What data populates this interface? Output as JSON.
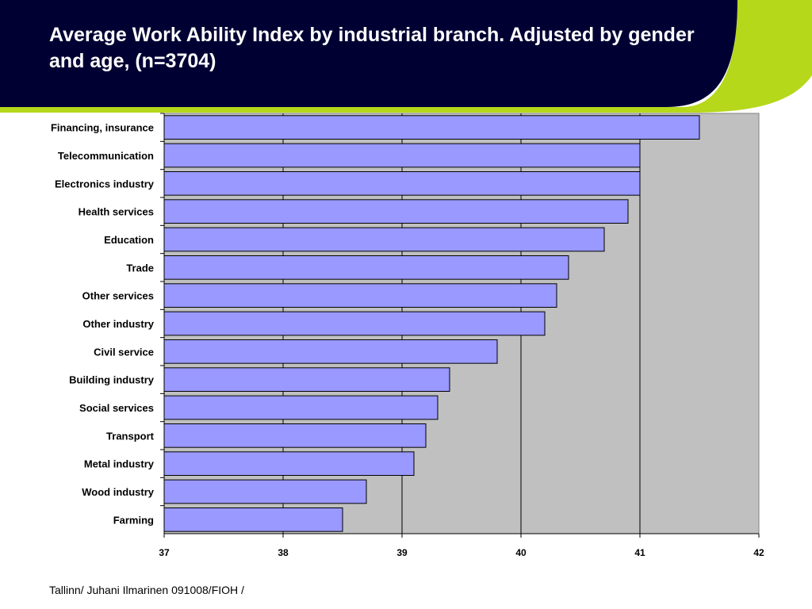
{
  "slide": {
    "title": "Average Work Ability Index by industrial branch. Adjusted by gender and age, (n=3704)",
    "footer": "Tallinn/ Juhani Ilmarinen 091008/FIOH /"
  },
  "colors": {
    "header": "#000033",
    "accent": "#b5d81b",
    "bar_fill": "#9999ff",
    "plot_bg": "#c0c0c0"
  },
  "chart_data": {
    "type": "bar",
    "orientation": "horizontal",
    "categories": [
      "Financing, insurance",
      "Telecommunication",
      "Electronics industry",
      "Health services",
      "Education",
      "Trade",
      "Other  services",
      "Other industry",
      "Civil service",
      "Building industry",
      "Social services",
      "Transport",
      "Metal industry",
      "Wood industry",
      "Farming"
    ],
    "values": [
      41.5,
      41.0,
      41.0,
      40.9,
      40.7,
      40.4,
      40.3,
      40.2,
      39.8,
      39.4,
      39.3,
      39.2,
      39.1,
      38.7,
      38.5
    ],
    "xlim": [
      37,
      42
    ],
    "xticks": [
      "37",
      "38",
      "39",
      "40",
      "41",
      "42"
    ],
    "grid": true,
    "legend": "none",
    "xlabel": "",
    "ylabel": ""
  }
}
